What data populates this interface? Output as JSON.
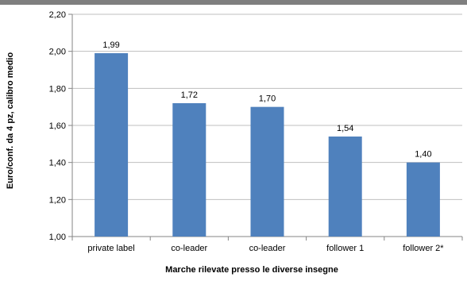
{
  "chart_data": {
    "type": "bar",
    "categories": [
      "private label",
      "co-leader",
      "co-leader",
      "follower 1",
      "follower 2*"
    ],
    "values": [
      1.99,
      1.72,
      1.7,
      1.54,
      1.4
    ],
    "value_labels": [
      "1,99",
      "1,72",
      "1,70",
      "1,54",
      "1,40"
    ],
    "xlabel": "Marche rilevate presso le diverse insegne",
    "ylabel": "Euro/conf. da 4 pz, calibro medio",
    "ylim": [
      1.0,
      2.2
    ],
    "yticks": [
      1.0,
      1.2,
      1.4,
      1.6,
      1.8,
      2.0,
      2.2
    ],
    "ytick_labels": [
      "1,00",
      "1,20",
      "1,40",
      "1,60",
      "1,80",
      "2,00",
      "2,20"
    ],
    "grid": "horizontal",
    "bar_color": "#4f81bd",
    "grid_color": "#bfbfbf"
  }
}
